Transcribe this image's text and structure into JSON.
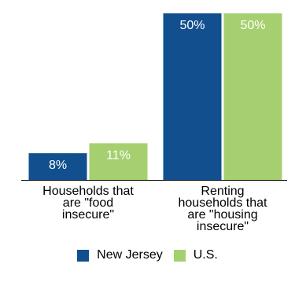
{
  "chart_data": {
    "type": "bar",
    "title": "",
    "xlabel": "",
    "ylabel": "",
    "ylim": [
      0,
      50
    ],
    "grid": false,
    "legend_position": "bottom",
    "categories": [
      [
        "Households that",
        "are \"food",
        "insecure\""
      ],
      [
        "Renting",
        "households that",
        "are \"housing",
        "insecure\""
      ]
    ],
    "series": [
      {
        "name": "New Jersey",
        "color": "#114f8e",
        "label_color": "#ffffff",
        "values": [
          8,
          50
        ],
        "labels": [
          "8%",
          "50%"
        ]
      },
      {
        "name": "U.S.",
        "color": "#a6d06f",
        "label_color": "#ffffff",
        "values": [
          11,
          50
        ],
        "labels": [
          "11%",
          "50%"
        ]
      }
    ]
  }
}
